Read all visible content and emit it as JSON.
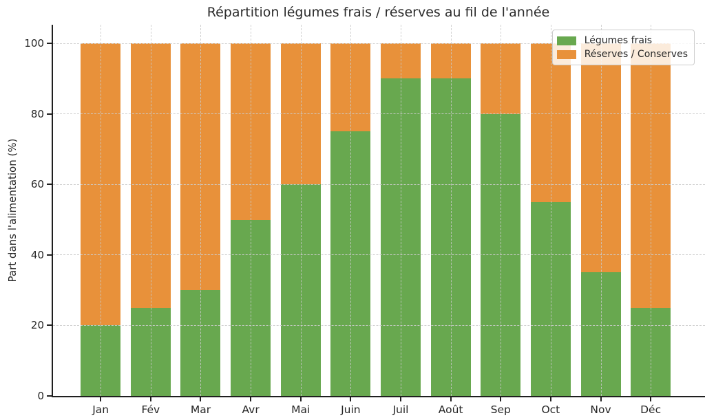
{
  "chart_data": {
    "type": "bar",
    "stacked": true,
    "title": "Répartition légumes frais / réserves au fil de l'année",
    "ylabel": "Part dans l'alimentation (%)",
    "xlabel": "",
    "categories": [
      "Jan",
      "Fév",
      "Mar",
      "Avr",
      "Mai",
      "Juin",
      "Juil",
      "Août",
      "Sep",
      "Oct",
      "Nov",
      "Déc"
    ],
    "series": [
      {
        "name": "Légumes frais",
        "color": "#68a84f",
        "values": [
          20,
          25,
          30,
          50,
          60,
          75,
          90,
          90,
          80,
          55,
          35,
          25
        ]
      },
      {
        "name": "Réserves / Conserves",
        "color": "#e8913a",
        "values": [
          80,
          75,
          70,
          50,
          40,
          25,
          10,
          10,
          20,
          45,
          65,
          75
        ]
      }
    ],
    "ylim": [
      0,
      100
    ],
    "yticks": [
      0,
      20,
      40,
      60,
      80,
      100
    ],
    "grid": true,
    "grid_style": "dashed",
    "legend_position": "upper right"
  }
}
